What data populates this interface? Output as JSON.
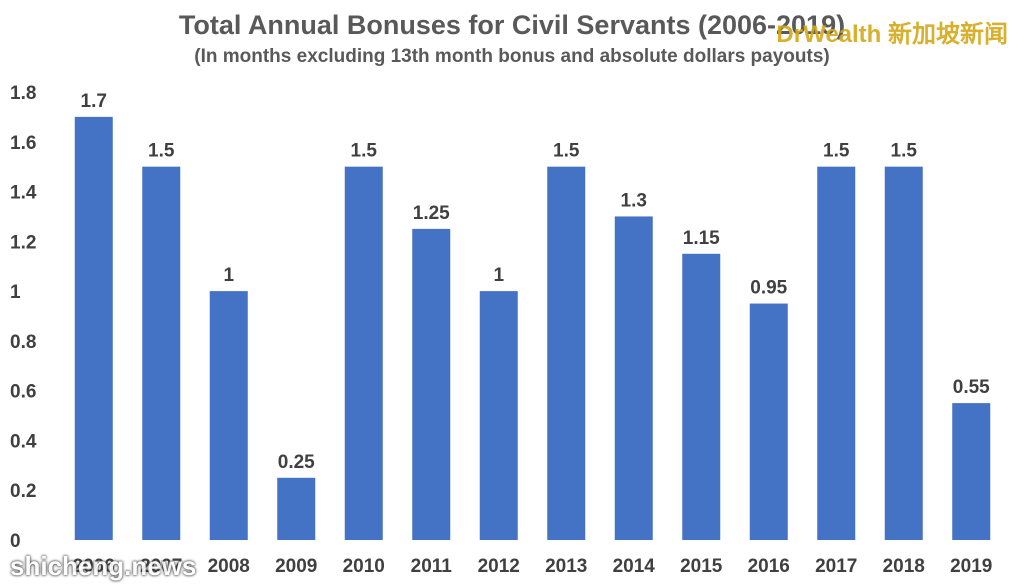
{
  "chart_data": {
    "type": "bar",
    "title": "Total Annual Bonuses for Civil Servants (2006-2019)",
    "subtitle": "(In months excluding 13th month bonus and absolute dollars payouts)",
    "categories": [
      "2006",
      "2007",
      "2008",
      "2009",
      "2010",
      "2011",
      "2012",
      "2013",
      "2014",
      "2015",
      "2016",
      "2017",
      "2018",
      "2019"
    ],
    "values": [
      1.7,
      1.5,
      1,
      0.25,
      1.5,
      1.25,
      1,
      1.5,
      1.3,
      1.15,
      0.95,
      1.5,
      1.5,
      0.55
    ],
    "data_labels": [
      "1.7",
      "1.5",
      "1",
      "0.25",
      "1.5",
      "1.25",
      "1",
      "1.5",
      "1.3",
      "1.15",
      "0.95",
      "1.5",
      "1.5",
      "0.55"
    ],
    "y_ticks": [
      "0",
      "0.2",
      "0.4",
      "0.6",
      "0.8",
      "1",
      "1.2",
      "1.4",
      "1.6",
      "1.8"
    ],
    "ylim": [
      0,
      1.8
    ],
    "grid": false,
    "legend": "none",
    "bar_color": "#4472C4"
  },
  "watermarks": {
    "top_right": "DrWealth 新加坡新闻",
    "bottom_left": "shicheng.news"
  }
}
